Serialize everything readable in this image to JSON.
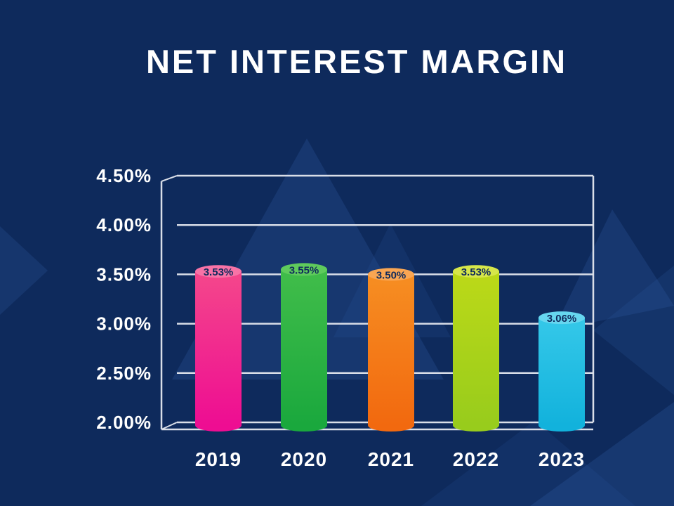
{
  "title": "NET INTEREST MARGIN",
  "colors": {
    "background": "#0E2A5C",
    "title_text": "#FFFFFF",
    "axis_text": "#FFFFFF",
    "grid_line": "#D9DEE8",
    "bar_label_text": "#0E2A5C"
  },
  "chart_data": {
    "type": "bar",
    "title": "NET INTEREST MARGIN",
    "categories": [
      "2019",
      "2020",
      "2021",
      "2022",
      "2023"
    ],
    "values": [
      3.53,
      3.55,
      3.5,
      3.53,
      3.06
    ],
    "data_labels": [
      "3.53%",
      "3.55%",
      "3.50%",
      "3.53%",
      "3.06%"
    ],
    "xlabel": "",
    "ylabel": "",
    "ylim": [
      2.0,
      4.5
    ],
    "yticks": [
      {
        "value": 4.5,
        "label": "4.50%"
      },
      {
        "value": 4.0,
        "label": "4.00%"
      },
      {
        "value": 3.5,
        "label": "3.50%"
      },
      {
        "value": 3.0,
        "label": "3.00%"
      },
      {
        "value": 2.5,
        "label": "2.50%"
      },
      {
        "value": 2.0,
        "label": "2.00%"
      }
    ],
    "grid": true,
    "legend": "none",
    "bar_style": "cylinder-3d",
    "bar_colors": [
      {
        "top": "#F873A6",
        "body_top": "#F4478B",
        "body_bottom": "#EE0D92"
      },
      {
        "top": "#5FCB5C",
        "body_top": "#41BD4A",
        "body_bottom": "#1AA83D"
      },
      {
        "top": "#F9A653",
        "body_top": "#F68E22",
        "body_bottom": "#F2690F"
      },
      {
        "top": "#D6E64A",
        "body_top": "#BCD918",
        "body_bottom": "#98CC1C"
      },
      {
        "top": "#66D6EF",
        "body_top": "#35C8E9",
        "body_bottom": "#12B2DC"
      }
    ]
  }
}
